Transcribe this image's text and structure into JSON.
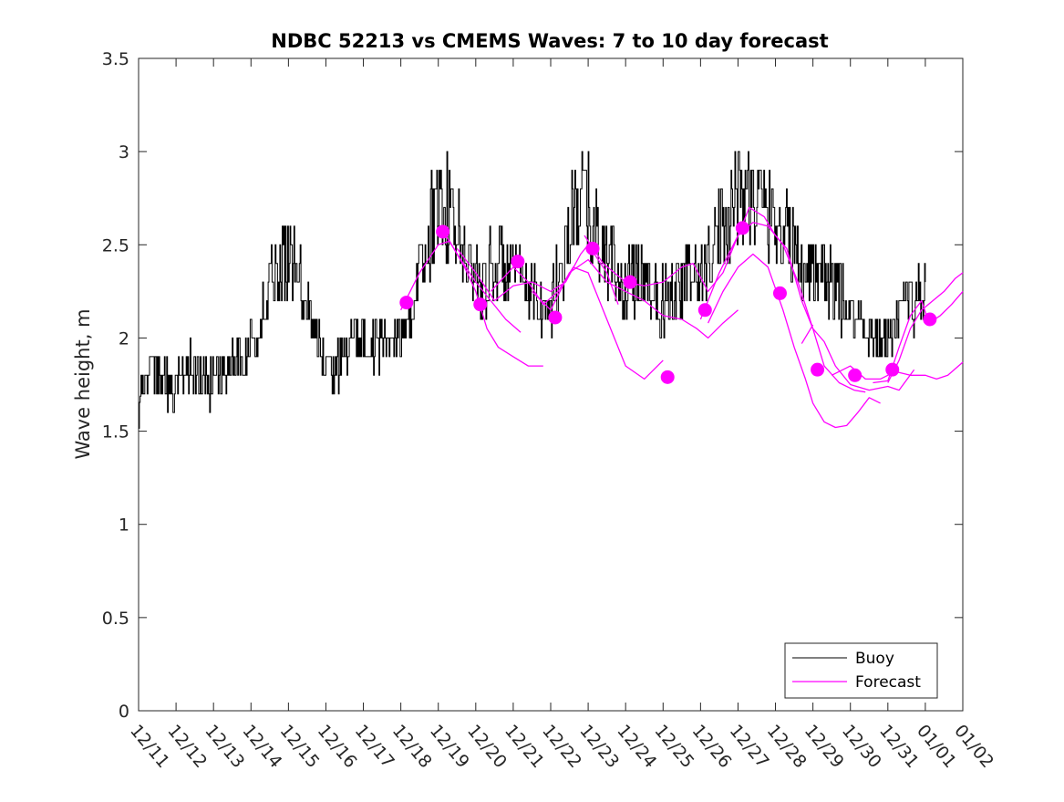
{
  "chart_data": {
    "type": "line",
    "title": "NDBC 52213 vs CMEMS Waves: 7 to 10 day forecast",
    "xlabel": "",
    "ylabel": "Wave height, m",
    "ylim": [
      0,
      3.5
    ],
    "xlim": [
      0,
      22
    ],
    "yticks": [
      0,
      0.5,
      1,
      1.5,
      2,
      2.5,
      3,
      3.5
    ],
    "ytick_labels": [
      "0",
      "0.5",
      "1",
      "1.5",
      "2",
      "2.5",
      "3",
      "3.5"
    ],
    "xtick_labels": [
      "12/11",
      "12/12",
      "12/13",
      "12/14",
      "12/15",
      "12/16",
      "12/17",
      "12/18",
      "12/19",
      "12/20",
      "12/21",
      "12/22",
      "12/23",
      "12/24",
      "12/25",
      "12/26",
      "12/27",
      "12/28",
      "12/29",
      "12/30",
      "12/31",
      "01/01",
      "01/02"
    ],
    "legend": {
      "position": "bottom-right",
      "entries": [
        "Buoy",
        "Forecast"
      ]
    },
    "colors": {
      "buoy": "#000000",
      "forecast": "#ff00ff",
      "axis": "#262626"
    },
    "series": [
      {
        "name": "Buoy",
        "x_unit": "days since 12/11 00:00",
        "anchors": [
          [
            0.0,
            1.7
          ],
          [
            0.15,
            1.75
          ],
          [
            0.3,
            1.85
          ],
          [
            0.5,
            1.8
          ],
          [
            0.7,
            1.75
          ],
          [
            0.9,
            1.7
          ],
          [
            1.0,
            1.72
          ],
          [
            1.2,
            1.78
          ],
          [
            1.4,
            1.85
          ],
          [
            1.6,
            1.78
          ],
          [
            1.8,
            1.75
          ],
          [
            2.0,
            1.78
          ],
          [
            2.2,
            1.8
          ],
          [
            2.4,
            1.85
          ],
          [
            2.6,
            1.88
          ],
          [
            2.8,
            1.92
          ],
          [
            3.0,
            1.95
          ],
          [
            3.2,
            2.05
          ],
          [
            3.4,
            2.2
          ],
          [
            3.6,
            2.3
          ],
          [
            3.8,
            2.35
          ],
          [
            4.0,
            2.42
          ],
          [
            4.2,
            2.4
          ],
          [
            4.3,
            2.3
          ],
          [
            4.5,
            2.2
          ],
          [
            4.7,
            2.05
          ],
          [
            4.9,
            1.9
          ],
          [
            5.1,
            1.8
          ],
          [
            5.3,
            1.85
          ],
          [
            5.5,
            1.92
          ],
          [
            5.7,
            1.98
          ],
          [
            5.9,
            2.0
          ],
          [
            6.2,
            1.98
          ],
          [
            6.5,
            1.95
          ],
          [
            6.8,
            2.0
          ],
          [
            7.0,
            2.05
          ],
          [
            7.2,
            2.1
          ],
          [
            7.4,
            2.2
          ],
          [
            7.6,
            2.45
          ],
          [
            7.8,
            2.6
          ],
          [
            8.0,
            2.7
          ],
          [
            8.2,
            2.7
          ],
          [
            8.4,
            2.58
          ],
          [
            8.6,
            2.48
          ],
          [
            8.8,
            2.4
          ],
          [
            9.0,
            2.35
          ],
          [
            9.2,
            2.3
          ],
          [
            9.4,
            2.38
          ],
          [
            9.6,
            2.42
          ],
          [
            9.8,
            2.38
          ],
          [
            10.0,
            2.35
          ],
          [
            10.2,
            2.3
          ],
          [
            10.4,
            2.25
          ],
          [
            10.6,
            2.2
          ],
          [
            10.8,
            2.15
          ],
          [
            11.0,
            2.2
          ],
          [
            11.2,
            2.3
          ],
          [
            11.4,
            2.5
          ],
          [
            11.6,
            2.65
          ],
          [
            11.8,
            2.75
          ],
          [
            12.0,
            2.7
          ],
          [
            12.2,
            2.55
          ],
          [
            12.4,
            2.45
          ],
          [
            12.6,
            2.4
          ],
          [
            12.8,
            2.3
          ],
          [
            13.0,
            2.25
          ],
          [
            13.2,
            2.3
          ],
          [
            13.4,
            2.35
          ],
          [
            13.6,
            2.3
          ],
          [
            13.8,
            2.25
          ],
          [
            14.0,
            2.2
          ],
          [
            14.2,
            2.25
          ],
          [
            14.4,
            2.28
          ],
          [
            14.6,
            2.3
          ],
          [
            14.8,
            2.32
          ],
          [
            15.0,
            2.35
          ],
          [
            15.2,
            2.4
          ],
          [
            15.4,
            2.5
          ],
          [
            15.6,
            2.62
          ],
          [
            15.8,
            2.72
          ],
          [
            16.0,
            2.78
          ],
          [
            16.2,
            2.8
          ],
          [
            16.4,
            2.75
          ],
          [
            16.6,
            2.72
          ],
          [
            16.8,
            2.68
          ],
          [
            17.0,
            2.65
          ],
          [
            17.2,
            2.58
          ],
          [
            17.4,
            2.5
          ],
          [
            17.6,
            2.42
          ],
          [
            17.8,
            2.38
          ],
          [
            18.0,
            2.4
          ],
          [
            18.2,
            2.35
          ],
          [
            18.4,
            2.3
          ],
          [
            18.6,
            2.25
          ],
          [
            18.8,
            2.2
          ],
          [
            19.0,
            2.15
          ],
          [
            19.2,
            2.1
          ],
          [
            19.4,
            2.05
          ],
          [
            19.6,
            2.0
          ],
          [
            19.8,
            1.95
          ],
          [
            20.0,
            2.0
          ],
          [
            20.2,
            2.05
          ],
          [
            20.4,
            2.15
          ],
          [
            20.6,
            2.22
          ],
          [
            20.8,
            2.25
          ],
          [
            21.0,
            2.22
          ]
        ]
      },
      {
        "name": "Forecast",
        "segments": [
          [
            [
              7.0,
              2.15
            ],
            [
              7.5,
              2.35
            ],
            [
              8.0,
              2.5
            ],
            [
              8.3,
              2.52
            ],
            [
              8.7,
              2.38
            ],
            [
              9.0,
              2.25
            ],
            [
              9.3,
              2.05
            ],
            [
              9.6,
              1.95
            ],
            [
              10.0,
              1.9
            ],
            [
              10.4,
              1.85
            ],
            [
              10.8,
              1.85
            ]
          ],
          [
            [
              8.2,
              2.55
            ],
            [
              8.6,
              2.42
            ],
            [
              9.0,
              2.3
            ],
            [
              9.4,
              2.2
            ],
            [
              9.8,
              2.1
            ],
            [
              10.2,
              2.03
            ]
          ],
          [
            [
              8.5,
              2.48
            ],
            [
              9.0,
              2.35
            ],
            [
              9.5,
              2.2
            ],
            [
              10.0,
              2.28
            ],
            [
              10.5,
              2.3
            ],
            [
              11.0,
              2.25
            ],
            [
              11.4,
              2.3
            ],
            [
              11.8,
              2.45
            ],
            [
              12.0,
              2.5
            ],
            [
              12.5,
              2.35
            ],
            [
              12.8,
              2.18
            ]
          ],
          [
            [
              9.4,
              2.25
            ],
            [
              10.0,
              2.38
            ],
            [
              10.4,
              2.3
            ],
            [
              10.8,
              2.18
            ],
            [
              11.2,
              2.25
            ],
            [
              11.6,
              2.38
            ],
            [
              12.0,
              2.35
            ],
            [
              12.5,
              2.1
            ],
            [
              13.0,
              1.85
            ],
            [
              13.5,
              1.78
            ],
            [
              14.0,
              1.88
            ]
          ],
          [
            [
              10.5,
              2.25
            ],
            [
              11.0,
              2.15
            ],
            [
              11.5,
              2.35
            ],
            [
              12.0,
              2.42
            ],
            [
              12.5,
              2.3
            ],
            [
              13.0,
              2.25
            ],
            [
              13.5,
              2.2
            ],
            [
              14.0,
              2.12
            ],
            [
              14.5,
              2.1
            ],
            [
              14.9,
              2.05
            ],
            [
              15.2,
              2.0
            ],
            [
              15.6,
              2.08
            ],
            [
              16.0,
              2.15
            ]
          ],
          [
            [
              11.9,
              2.55
            ],
            [
              12.4,
              2.4
            ],
            [
              13.0,
              2.3
            ],
            [
              13.5,
              2.28
            ],
            [
              14.0,
              2.3
            ],
            [
              14.5,
              2.38
            ],
            [
              14.8,
              2.4
            ],
            [
              15.2,
              2.25
            ],
            [
              15.6,
              2.35
            ],
            [
              16.0,
              2.55
            ],
            [
              16.4,
              2.62
            ],
            [
              16.8,
              2.6
            ],
            [
              17.2,
              2.5
            ],
            [
              17.6,
              2.3
            ],
            [
              18.0,
              2.05
            ],
            [
              18.3,
              1.85
            ],
            [
              18.7,
              1.76
            ],
            [
              19.1,
              1.72
            ],
            [
              19.4,
              1.71
            ]
          ],
          [
            [
              15.0,
              2.1
            ],
            [
              15.5,
              2.35
            ],
            [
              16.0,
              2.55
            ],
            [
              16.3,
              2.7
            ],
            [
              16.7,
              2.65
            ],
            [
              17.0,
              2.55
            ],
            [
              17.3,
              2.48
            ],
            [
              17.7,
              2.2
            ],
            [
              18.0,
              2.05
            ],
            [
              18.3,
              1.98
            ],
            [
              18.6,
              1.85
            ],
            [
              19.0,
              1.75
            ],
            [
              19.5,
              1.72
            ],
            [
              20.0,
              1.74
            ],
            [
              20.3,
              1.72
            ],
            [
              20.7,
              1.83
            ]
          ],
          [
            [
              15.2,
              2.08
            ],
            [
              15.6,
              2.25
            ],
            [
              16.0,
              2.38
            ],
            [
              16.4,
              2.45
            ],
            [
              16.8,
              2.38
            ],
            [
              17.2,
              2.15
            ],
            [
              17.5,
              1.95
            ],
            [
              17.8,
              1.78
            ],
            [
              18.0,
              1.65
            ],
            [
              18.3,
              1.55
            ],
            [
              18.6,
              1.52
            ],
            [
              18.9,
              1.53
            ],
            [
              19.2,
              1.6
            ],
            [
              19.5,
              1.68
            ],
            [
              19.8,
              1.65
            ]
          ],
          [
            [
              17.7,
              1.97
            ],
            [
              18.0,
              2.07
            ]
          ],
          [
            [
              18.5,
              1.8
            ],
            [
              19.0,
              1.85
            ],
            [
              19.4,
              1.78
            ],
            [
              19.8,
              1.78
            ],
            [
              20.2,
              1.82
            ],
            [
              20.6,
              1.8
            ],
            [
              21.0,
              1.8
            ],
            [
              21.3,
              1.78
            ],
            [
              21.6,
              1.8
            ],
            [
              22.0,
              1.87
            ]
          ],
          [
            [
              19.6,
              1.76
            ],
            [
              20.0,
              1.77
            ],
            [
              20.3,
              1.95
            ],
            [
              20.6,
              2.12
            ],
            [
              20.9,
              2.2
            ],
            [
              21.1,
              2.08
            ],
            [
              21.4,
              2.12
            ],
            [
              21.7,
              2.18
            ],
            [
              22.0,
              2.25
            ]
          ],
          [
            [
              20.0,
              1.76
            ],
            [
              20.3,
              1.88
            ],
            [
              20.6,
              2.05
            ],
            [
              20.9,
              2.15
            ],
            [
              21.2,
              2.2
            ],
            [
              21.5,
              2.25
            ],
            [
              21.8,
              2.32
            ],
            [
              22.0,
              2.35
            ]
          ]
        ]
      },
      {
        "name": "Forecast markers",
        "x": [
          7.15,
          8.12,
          9.12,
          10.12,
          11.12,
          12.12,
          13.12,
          14.12,
          15.12,
          16.12,
          17.12,
          18.12,
          19.12,
          20.12,
          21.12
        ],
        "y": [
          2.19,
          2.57,
          2.18,
          2.41,
          2.11,
          2.48,
          2.3,
          1.79,
          2.15,
          2.59,
          2.24,
          1.83,
          1.8,
          1.83,
          2.1
        ]
      }
    ]
  }
}
